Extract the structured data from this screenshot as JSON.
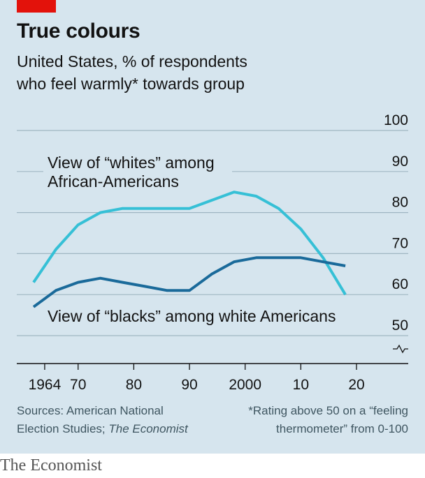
{
  "header": {
    "title": "True colours",
    "subtitle_line1": "United States, % of respondents",
    "subtitle_line2": "who feel warmly* towards group"
  },
  "footer": {
    "sources_prefix": "Sources: American National",
    "sources_line2": "Election Studies; ",
    "sources_italic": "The Economist",
    "note_line1": "*Rating above 50 on a “feeling",
    "note_line2": "thermometer” from 0-100"
  },
  "brand": "The Economist",
  "colors": {
    "background": "#d6e5ee",
    "series_whites": "#36c0d6",
    "series_blacks": "#1a6a9a",
    "axis": "#121212",
    "gridline": "#9fb6c2"
  },
  "chart_data": {
    "type": "line",
    "xlim": [
      1962,
      2020
    ],
    "ylim": [
      50,
      100
    ],
    "y_break": true,
    "grid": true,
    "y_ticks": [
      50,
      60,
      70,
      80,
      90,
      100
    ],
    "x_ticks": [
      {
        "value": 1964,
        "label": "1964"
      },
      {
        "value": 1970,
        "label": "70"
      },
      {
        "value": 1980,
        "label": "80"
      },
      {
        "value": 1990,
        "label": "90"
      },
      {
        "value": 2000,
        "label": "2000"
      },
      {
        "value": 2010,
        "label": "10"
      },
      {
        "value": 2020,
        "label": "20"
      }
    ],
    "series": [
      {
        "name": "View of “whites” among African-Americans",
        "label_line1": "View of “whites” among",
        "label_line2": "African-Americans",
        "color": "#36c0d6",
        "x": [
          1962,
          1966,
          1970,
          1974,
          1978,
          1982,
          1986,
          1990,
          1994,
          1998,
          2002,
          2006,
          2010,
          2014,
          2018
        ],
        "y": [
          63,
          71,
          77,
          80,
          81,
          81,
          81,
          81,
          83,
          85,
          84,
          81,
          76,
          69,
          60
        ]
      },
      {
        "name": "View of “blacks” among white Americans",
        "label_line1": "View of “blacks” among white Americans",
        "color": "#1a6a9a",
        "x": [
          1962,
          1966,
          1970,
          1974,
          1978,
          1982,
          1986,
          1990,
          1994,
          1998,
          2002,
          2006,
          2010,
          2014,
          2018
        ],
        "y": [
          57,
          61,
          63,
          64,
          63,
          62,
          61,
          61,
          65,
          68,
          69,
          69,
          69,
          68,
          67
        ]
      }
    ]
  }
}
